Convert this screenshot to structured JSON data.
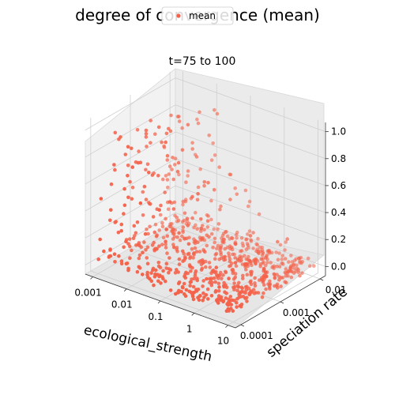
{
  "chart_data": {
    "type": "scatter",
    "title": "degree of convergence (mean)",
    "subtitle": "t=75 to 100",
    "xlabel": "ecological_strength",
    "ylabel": "speciation rate",
    "zlabel": "",
    "x_ticks": [
      "0.001",
      "0.01",
      "0.1",
      "1",
      "10"
    ],
    "y_ticks": [
      "0.0001",
      "0.001",
      "0.01"
    ],
    "z_ticks": [
      "0.0",
      "0.2",
      "0.4",
      "0.6",
      "0.8",
      "1.0"
    ],
    "xlim": [
      "0.001",
      "10"
    ],
    "ylim": [
      "0.0001",
      "0.01"
    ],
    "zlim": [
      0,
      1
    ],
    "x_scale": "log",
    "y_scale": "log",
    "grid": true,
    "legend_position": "top-center",
    "series": [
      {
        "name": "mean",
        "color": "#f4624a",
        "point_count": 800
      }
    ]
  }
}
